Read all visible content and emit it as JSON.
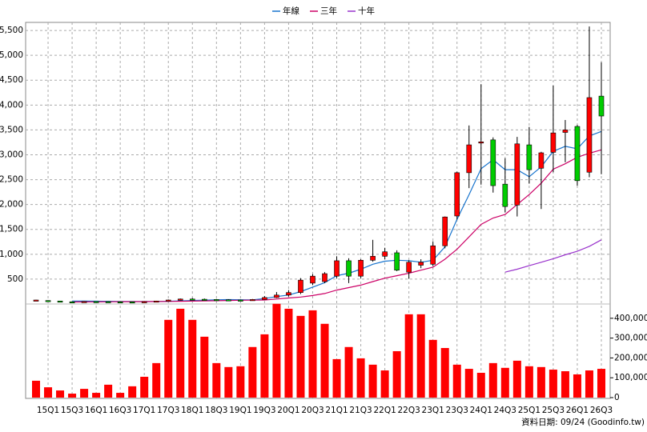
{
  "chart_data": [
    {
      "type": "candlestick",
      "categories": [
        null,
        "15Q1",
        null,
        "15Q3",
        null,
        "16Q1",
        null,
        "16Q3",
        null,
        "17Q1",
        null,
        "17Q3",
        null,
        "18Q1",
        null,
        "18Q3",
        null,
        "19Q1",
        null,
        "19Q3",
        null,
        "20Q1",
        null,
        "20Q3",
        null,
        "21Q1",
        null,
        "21Q3",
        null,
        "22Q1",
        null,
        "22Q3",
        null,
        "23Q1",
        null,
        "23Q3",
        null,
        "24Q1",
        null,
        "24Q3",
        null,
        "25Q1",
        null,
        "25Q3",
        null,
        "26Q1",
        null,
        "26Q3"
      ],
      "open": [
        80,
        70,
        60,
        45,
        45,
        50,
        48,
        45,
        44,
        40,
        48,
        60,
        80,
        100,
        95,
        90,
        85,
        80,
        75,
        90,
        130,
        180,
        230,
        420,
        450,
        560,
        870,
        560,
        880,
        960,
        1030,
        640,
        780,
        800,
        1170,
        1770,
        2640,
        3240,
        3300,
        2410,
        1990,
        3200,
        2730,
        3050,
        3450,
        3570,
        2650,
        4180
      ],
      "high": [
        85,
        75,
        62,
        50,
        55,
        55,
        52,
        50,
        48,
        50,
        65,
        90,
        110,
        120,
        110,
        100,
        95,
        90,
        100,
        160,
        240,
        280,
        520,
        600,
        640,
        960,
        920,
        900,
        1290,
        1130,
        1080,
        880,
        900,
        1260,
        1760,
        2660,
        3590,
        4420,
        3350,
        2930,
        3360,
        3560,
        3060,
        4390,
        3700,
        3600,
        5580,
        4860
      ],
      "low": [
        75,
        65,
        55,
        40,
        40,
        45,
        42,
        40,
        38,
        38,
        45,
        55,
        70,
        85,
        80,
        75,
        70,
        65,
        70,
        85,
        120,
        150,
        200,
        380,
        420,
        520,
        420,
        520,
        850,
        900,
        660,
        510,
        720,
        760,
        1120,
        1700,
        2330,
        2400,
        2240,
        1840,
        1760,
        2420,
        1910,
        2650,
        2850,
        2380,
        2550,
        2610
      ],
      "close": [
        80,
        68,
        58,
        42,
        50,
        48,
        45,
        44,
        40,
        48,
        60,
        80,
        100,
        95,
        90,
        85,
        80,
        75,
        90,
        130,
        180,
        230,
        480,
        560,
        610,
        870,
        560,
        880,
        960,
        1050,
        680,
        840,
        840,
        1170,
        1750,
        2640,
        3200,
        3260,
        2380,
        1960,
        3220,
        2700,
        3040,
        3440,
        3500,
        2480,
        4150,
        3780
      ],
      "up_color": "#ff0000",
      "down_color": "#00cc00",
      "series": [
        {
          "name": "年線",
          "color": "#1874cd",
          "values": [
            null,
            null,
            null,
            60,
            58,
            56,
            55,
            52,
            50,
            48,
            50,
            55,
            62,
            70,
            78,
            85,
            88,
            86,
            84,
            110,
            150,
            180,
            250,
            340,
            430,
            570,
            620,
            700,
            800,
            860,
            880,
            870,
            840,
            880,
            1150,
            1700,
            2200,
            2720,
            2900,
            2700,
            2700,
            2560,
            2760,
            3070,
            3170,
            3120,
            3380,
            3470
          ]
        },
        {
          "name": "三年",
          "color": "#cc0066",
          "values": [
            null,
            null,
            null,
            40,
            42,
            44,
            45,
            46,
            47,
            48,
            50,
            52,
            55,
            58,
            62,
            66,
            70,
            75,
            78,
            80,
            100,
            120,
            140,
            170,
            210,
            280,
            330,
            380,
            450,
            520,
            570,
            620,
            680,
            740,
            900,
            1100,
            1350,
            1600,
            1730,
            1800,
            2000,
            2200,
            2430,
            2710,
            2820,
            2950,
            3030,
            3100
          ]
        },
        {
          "name": "十年",
          "color": "#9932cc",
          "values": [
            null,
            null,
            null,
            null,
            null,
            null,
            null,
            null,
            null,
            null,
            null,
            null,
            null,
            null,
            null,
            null,
            null,
            null,
            null,
            null,
            null,
            null,
            null,
            null,
            null,
            null,
            null,
            null,
            null,
            null,
            null,
            null,
            null,
            null,
            null,
            null,
            null,
            null,
            null,
            640,
            700,
            770,
            840,
            910,
            990,
            1060,
            1160,
            1290
          ]
        }
      ],
      "ylim": [
        0,
        5630
      ],
      "yticks": [
        500,
        {
          "value": 1000,
          "label": "1,000"
        },
        {
          "value": 1500,
          "label": "1,500"
        },
        {
          "value": 2000,
          "label": "2,000"
        },
        {
          "value": 2500,
          "label": "2,500"
        },
        {
          "value": 3000,
          "label": "3,000"
        },
        {
          "value": 3500,
          "label": "3,500"
        },
        {
          "value": 4000,
          "label": "4,000"
        },
        {
          "value": 4500,
          "label": "4,500"
        },
        {
          "value": 5000,
          "label": "5,000"
        },
        {
          "value": 5500,
          "label": "5,500"
        }
      ],
      "grid": true
    },
    {
      "type": "bar",
      "color": "#ff0000",
      "values": [
        85000,
        52000,
        36000,
        20000,
        44000,
        24000,
        65000,
        24000,
        57000,
        105000,
        174000,
        392000,
        448000,
        392000,
        307000,
        174000,
        154000,
        158000,
        255000,
        319000,
        473000,
        448000,
        412000,
        440000,
        372000,
        194000,
        255000,
        198000,
        166000,
        137000,
        234000,
        420000,
        420000,
        291000,
        250000,
        166000,
        145000,
        125000,
        174000,
        150000,
        186000,
        158000,
        154000,
        141000,
        133000,
        117000,
        137000,
        145000
      ],
      "ylim": [
        0,
        480000
      ],
      "yticks": [
        0,
        {
          "value": 100000,
          "label": "100,000"
        },
        {
          "value": 200000,
          "label": "200,000"
        },
        {
          "value": 300000,
          "label": "300,000"
        },
        {
          "value": 400000,
          "label": "400,000"
        }
      ],
      "footnote": "資料日期: 09/24  (Goodinfo.tw)"
    }
  ]
}
